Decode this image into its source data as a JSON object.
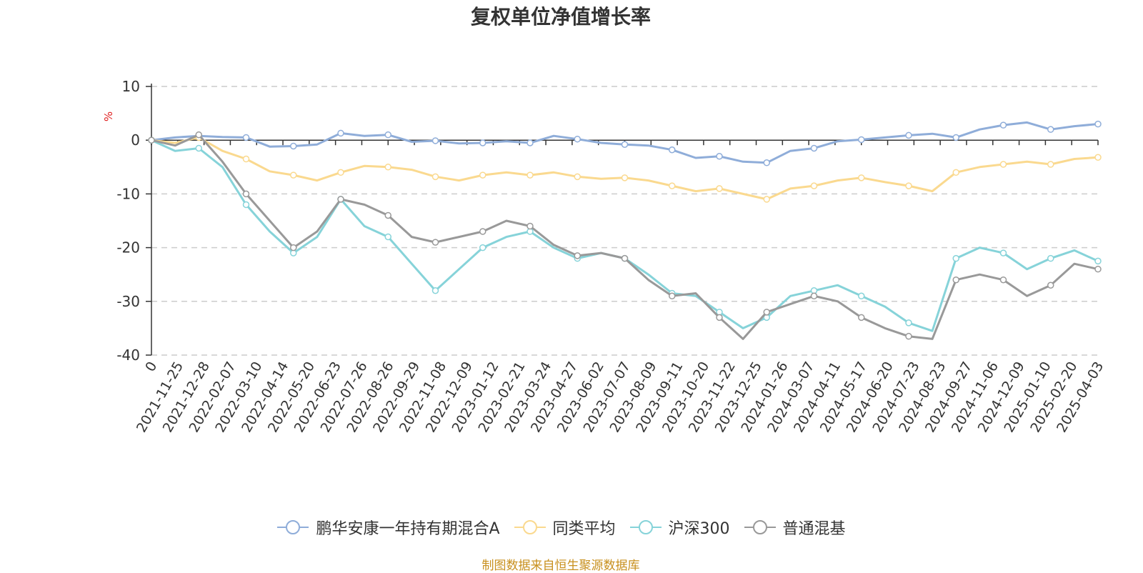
{
  "chart_data": {
    "type": "line",
    "title": "复权单位净值增长率",
    "ylabel": "%",
    "xlabel": "",
    "ylim": [
      -40,
      10
    ],
    "yticks": [
      10,
      0,
      -10,
      -20,
      -30,
      -40
    ],
    "xtick_labels": [
      "0",
      "2021-11-25",
      "2021-12-28",
      "2022-02-07",
      "2022-03-10",
      "2022-04-14",
      "2022-05-20",
      "2022-06-23",
      "2022-07-26",
      "2022-08-26",
      "2022-09-29",
      "2022-11-08",
      "2022-12-09",
      "2023-01-12",
      "2023-02-21",
      "2023-03-24",
      "2023-04-27",
      "2023-06-02",
      "2023-07-07",
      "2023-08-09",
      "2023-09-11",
      "2023-10-20",
      "2023-11-22",
      "2023-12-25",
      "2024-01-26",
      "2024-03-07",
      "2024-04-11",
      "2024-05-17",
      "2024-06-20",
      "2024-07-23",
      "2024-08-23",
      "2024-09-27",
      "2024-11-06",
      "2024-12-09",
      "2025-01-10",
      "2025-02-20",
      "2025-04-03"
    ],
    "grid": true,
    "legend_position": "bottom",
    "series": [
      {
        "name": "鹏华安康一年持有期混合A",
        "color": "#8fadd9",
        "values": [
          0,
          0.5,
          0.8,
          0.6,
          0.5,
          -1.2,
          -1.1,
          -0.8,
          1.3,
          0.8,
          1.0,
          -0.3,
          -0.1,
          -0.6,
          -0.5,
          -0.2,
          -0.5,
          0.8,
          0.2,
          -0.5,
          -0.8,
          -1.0,
          -1.8,
          -3.3,
          -3.0,
          -4.0,
          -4.2,
          -2.0,
          -1.5,
          -0.2,
          0.1,
          0.5,
          0.9,
          1.2,
          0.5,
          2.0,
          2.8,
          3.3,
          2.0,
          2.6,
          3.0
        ]
      },
      {
        "name": "同类平均",
        "color": "#fad98f",
        "values": [
          0,
          -0.5,
          0.5,
          -2.0,
          -3.5,
          -5.8,
          -6.5,
          -7.5,
          -6.0,
          -4.8,
          -5.0,
          -5.5,
          -6.8,
          -7.5,
          -6.5,
          -6.0,
          -6.5,
          -6.0,
          -6.8,
          -7.2,
          -7.0,
          -7.5,
          -8.5,
          -9.5,
          -9.0,
          -10.0,
          -11.0,
          -9.0,
          -8.5,
          -7.5,
          -7.0,
          -7.8,
          -8.5,
          -9.5,
          -6.0,
          -5.0,
          -4.5,
          -4.0,
          -4.5,
          -3.5,
          -3.2
        ]
      },
      {
        "name": "沪深300",
        "color": "#86d3d9",
        "values": [
          0,
          -2.0,
          -1.5,
          -5.0,
          -12.0,
          -17.0,
          -21.0,
          -18.0,
          -11.0,
          -16.0,
          -18.0,
          -23.0,
          -28.0,
          -24.0,
          -20.0,
          -18.0,
          -17.0,
          -20.0,
          -22.0,
          -21.0,
          -22.0,
          -25.0,
          -28.5,
          -29.0,
          -32.0,
          -35.0,
          -33.0,
          -29.0,
          -28.0,
          -27.0,
          -29.0,
          -31.0,
          -34.0,
          -35.5,
          -22.0,
          -20.0,
          -21.0,
          -24.0,
          -22.0,
          -20.5,
          -22.5
        ]
      },
      {
        "name": "普通混基",
        "color": "#999999",
        "values": [
          0,
          -1.0,
          1.0,
          -4.0,
          -10.0,
          -15.0,
          -20.0,
          -17.0,
          -11.0,
          -12.0,
          -14.0,
          -18.0,
          -19.0,
          -18.0,
          -17.0,
          -15.0,
          -16.0,
          -19.5,
          -21.5,
          -21.0,
          -22.0,
          -26.0,
          -29.0,
          -28.5,
          -33.0,
          -37.0,
          -32.0,
          -30.5,
          -29.0,
          -30.0,
          -33.0,
          -35.0,
          -36.5,
          -37.0,
          -26.0,
          -25.0,
          -26.0,
          -29.0,
          -27.0,
          -23.0,
          -24.0
        ]
      }
    ]
  },
  "legend": {
    "items": [
      {
        "label": "鹏华安康一年持有期混合A",
        "color": "#8fadd9",
        "icon": "line-circle-icon"
      },
      {
        "label": "同类平均",
        "color": "#fad98f",
        "icon": "line-circle-icon"
      },
      {
        "label": "沪深300",
        "color": "#86d3d9",
        "icon": "line-circle-icon"
      },
      {
        "label": "普通混基",
        "color": "#999999",
        "icon": "line-circle-icon"
      }
    ]
  },
  "source_text": "制图数据来自恒生聚源数据库"
}
